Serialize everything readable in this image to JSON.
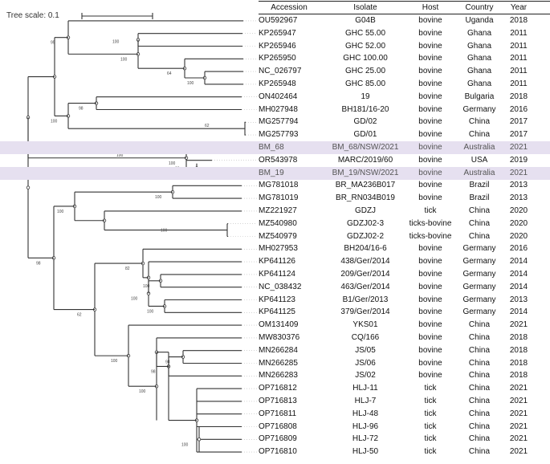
{
  "figure": {
    "scale_label": "Tree scale: 0.1"
  },
  "table": {
    "headers": {
      "accession": "Accession",
      "isolate": "Isolate",
      "host": "Host",
      "country": "Country",
      "year": "Year"
    },
    "rows": [
      {
        "accession": "OU592967",
        "isolate": "G04B",
        "host": "bovine",
        "country": "Uganda",
        "year": "2018",
        "highlight": false
      },
      {
        "accession": "KP265947",
        "isolate": "GHC 55.00",
        "host": "bovine",
        "country": "Ghana",
        "year": "2011",
        "highlight": false
      },
      {
        "accession": "KP265946",
        "isolate": "GHC 52.00",
        "host": "bovine",
        "country": "Ghana",
        "year": "2011",
        "highlight": false
      },
      {
        "accession": "KP265950",
        "isolate": "GHC 100.00",
        "host": "bovine",
        "country": "Ghana",
        "year": "2011",
        "highlight": false
      },
      {
        "accession": "NC_026797",
        "isolate": "GHC 25.00",
        "host": "bovine",
        "country": "Ghana",
        "year": "2011",
        "highlight": false
      },
      {
        "accession": "KP265948",
        "isolate": "GHC 85.00",
        "host": "bovine",
        "country": "Ghana",
        "year": "2011",
        "highlight": false
      },
      {
        "accession": "ON402464",
        "isolate": "19",
        "host": "bovine",
        "country": "Bulgaria",
        "year": "2018",
        "highlight": false
      },
      {
        "accession": "MH027948",
        "isolate": "BH181/16-20",
        "host": "bovine",
        "country": "Germany",
        "year": "2016",
        "highlight": false
      },
      {
        "accession": "MG257794",
        "isolate": "GD/02",
        "host": "bovine",
        "country": "China",
        "year": "2017",
        "highlight": false
      },
      {
        "accession": "MG257793",
        "isolate": "GD/01",
        "host": "bovine",
        "country": "China",
        "year": "2017",
        "highlight": false
      },
      {
        "accession": "BM_68",
        "isolate": "BM_68/NSW/2021",
        "host": "bovine",
        "country": "Australia",
        "year": "2021",
        "highlight": true
      },
      {
        "accession": "OR543978",
        "isolate": "MARC/2019/60",
        "host": "bovine",
        "country": "USA",
        "year": "2019",
        "highlight": false
      },
      {
        "accession": "BM_19",
        "isolate": "BM_19/NSW/2021",
        "host": "bovine",
        "country": "Australia",
        "year": "2021",
        "highlight": true
      },
      {
        "accession": "MG781018",
        "isolate": "BR_MA236B017",
        "host": "bovine",
        "country": "Brazil",
        "year": "2013",
        "highlight": false
      },
      {
        "accession": "MG781019",
        "isolate": "BR_RN034B019",
        "host": "bovine",
        "country": "Brazil",
        "year": "2013",
        "highlight": false
      },
      {
        "accession": "MZ221927",
        "isolate": "GDZJ",
        "host": "tick",
        "country": "China",
        "year": "2020",
        "highlight": false
      },
      {
        "accession": "MZ540980",
        "isolate": "GDZJ02-3",
        "host": "ticks-bovine",
        "country": "China",
        "year": "2020",
        "highlight": false
      },
      {
        "accession": "MZ540979",
        "isolate": "GDZJ02-2",
        "host": "ticks-bovine",
        "country": "China",
        "year": "2020",
        "highlight": false
      },
      {
        "accession": "MH027953",
        "isolate": "BH204/16-6",
        "host": "bovine",
        "country": "Germany",
        "year": "2016",
        "highlight": false
      },
      {
        "accession": "KP641126",
        "isolate": "438/Ger/2014",
        "host": "bovine",
        "country": "Germany",
        "year": "2014",
        "highlight": false
      },
      {
        "accession": "KP641124",
        "isolate": "209/Ger/2014",
        "host": "bovine",
        "country": "Germany",
        "year": "2014",
        "highlight": false
      },
      {
        "accession": "NC_038432",
        "isolate": "463/Ger/2014",
        "host": "bovine",
        "country": "Germany",
        "year": "2014",
        "highlight": false
      },
      {
        "accession": "KP641123",
        "isolate": "B1/Ger/2013",
        "host": "bovine",
        "country": "Germany",
        "year": "2013",
        "highlight": false
      },
      {
        "accession": "KP641125",
        "isolate": "379/Ger/2014",
        "host": "bovine",
        "country": "Germany",
        "year": "2014",
        "highlight": false
      },
      {
        "accession": "OM131409",
        "isolate": "YKS01",
        "host": "bovine",
        "country": "China",
        "year": "2021",
        "highlight": false
      },
      {
        "accession": "MW830376",
        "isolate": "CQ/166",
        "host": "bovine",
        "country": "China",
        "year": "2018",
        "highlight": false
      },
      {
        "accession": "MN266284",
        "isolate": "JS/05",
        "host": "bovine",
        "country": "China",
        "year": "2018",
        "highlight": false
      },
      {
        "accession": "MN266285",
        "isolate": "JS/06",
        "host": "bovine",
        "country": "China",
        "year": "2018",
        "highlight": false
      },
      {
        "accession": "MN266283",
        "isolate": "JS/02",
        "host": "bovine",
        "country": "China",
        "year": "2018",
        "highlight": false
      },
      {
        "accession": "OP716812",
        "isolate": "HLJ-11",
        "host": "tick",
        "country": "China",
        "year": "2021",
        "highlight": false
      },
      {
        "accession": "OP716813",
        "isolate": "HLJ-7",
        "host": "tick",
        "country": "China",
        "year": "2021",
        "highlight": false
      },
      {
        "accession": "OP716811",
        "isolate": "HLJ-48",
        "host": "tick",
        "country": "China",
        "year": "2021",
        "highlight": false
      },
      {
        "accession": "OP716808",
        "isolate": "HLJ-96",
        "host": "tick",
        "country": "China",
        "year": "2021",
        "highlight": false
      },
      {
        "accession": "OP716809",
        "isolate": "HLJ-72",
        "host": "tick",
        "country": "China",
        "year": "2021",
        "highlight": false
      },
      {
        "accession": "OP716810",
        "isolate": "HLJ-50",
        "host": "tick",
        "country": "China",
        "year": "2021",
        "highlight": false
      }
    ]
  },
  "tree": {
    "edge_color": "#333333",
    "dash_color": "#555555",
    "highlight_color": "#e6e0f0",
    "bootstrap_labels": [
      "100",
      "64",
      "100",
      "100",
      "95",
      "98",
      "62",
      "100",
      "100",
      "93",
      "100",
      "100",
      "100",
      "100",
      "100",
      "100",
      "100",
      "82",
      "98",
      "98",
      "100",
      "100",
      "100",
      "62",
      "98",
      "99",
      "100",
      "100"
    ]
  }
}
